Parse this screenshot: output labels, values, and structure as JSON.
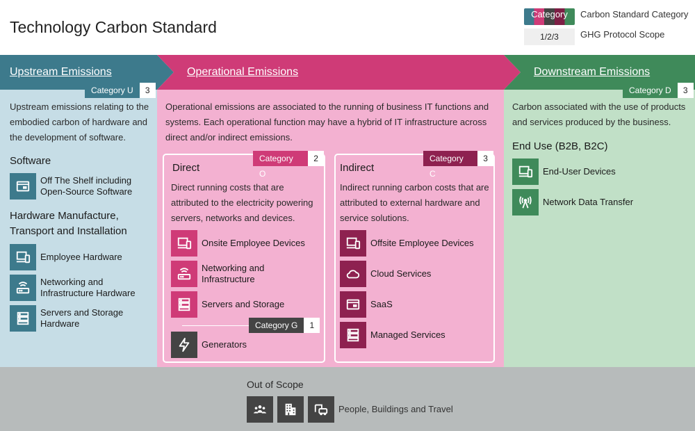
{
  "title": "Technology Carbon Standard",
  "legend": {
    "category_chip": "Category",
    "category_text": "Carbon Standard Category",
    "scope_chip": "1/2/3",
    "scope_text": "GHG Protocol Scope"
  },
  "colors": {
    "upstream": "#3d7a8c",
    "operational": "#cf3b77",
    "downstream": "#3f8a5a",
    "indirect": "#8e2150",
    "generators": "#444444"
  },
  "upstream": {
    "heading": "Upstream Emissions",
    "category": "Category U",
    "scope": "3",
    "description": "Upstream emissions relating to the embodied carbon of hardware and the development of software.",
    "software_heading": "Software",
    "software_items": [
      {
        "label": "Off The Shelf including Open-Source Software",
        "icon": "window-icon"
      }
    ],
    "hardware_heading": "Hardware Manufacture, Transport and Installation",
    "hardware_items": [
      {
        "label": "Employee Hardware",
        "icon": "devices-icon"
      },
      {
        "label": "Networking and Infrastructure Hardware",
        "icon": "router-icon"
      },
      {
        "label": "Servers and Storage Hardware",
        "icon": "server-icon"
      }
    ]
  },
  "operational": {
    "heading": "Operational Emissions",
    "description": "Operational emissions are associated to the running of business IT functions and systems. Each operational function may have a hybrid of IT infrastructure across direct and/or indirect emissions.",
    "direct": {
      "heading": "Direct",
      "category": "Category O",
      "scope": "2",
      "description": "Direct running costs that are attributed to the electricity powering servers, networks and devices.",
      "items": [
        {
          "label": "Onsite Employee Devices",
          "icon": "devices-icon"
        },
        {
          "label": "Networking and Infrastructure",
          "icon": "router-icon"
        },
        {
          "label": "Servers and Storage",
          "icon": "server-icon"
        }
      ],
      "generator_category": "Category G",
      "generator_scope": "1",
      "generator_item": {
        "label": "Generators",
        "icon": "lightning-icon"
      }
    },
    "indirect": {
      "heading": "Indirect",
      "category": "Category C",
      "scope": "3",
      "description": "Indirect running carbon costs that are attributed to external hardware and service solutions.",
      "items": [
        {
          "label": "Offsite Employee Devices",
          "icon": "devices-icon"
        },
        {
          "label": "Cloud Services",
          "icon": "cloud-icon"
        },
        {
          "label": "SaaS",
          "icon": "window-icon"
        },
        {
          "label": "Managed Services",
          "icon": "server-icon"
        }
      ]
    }
  },
  "downstream": {
    "heading": "Downstream Emissions",
    "category": "Category D",
    "scope": "3",
    "description": "Carbon associated with the use of products and services produced by the business.",
    "end_use_heading": "End Use (B2B, B2C)",
    "items": [
      {
        "label": "End-User Devices",
        "icon": "devices-icon"
      },
      {
        "label": "Network Data Transfer",
        "icon": "antenna-icon"
      }
    ]
  },
  "out_of_scope": {
    "heading": "Out of Scope",
    "label": "People, Buildings and Travel",
    "icons": [
      "people-icon",
      "building-icon",
      "car-icon"
    ]
  }
}
